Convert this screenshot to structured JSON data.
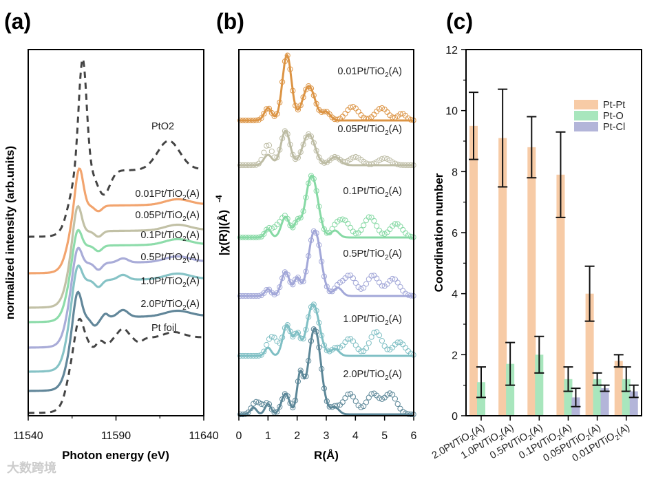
{
  "watermark": "大数跨境",
  "chart_data": [
    {
      "panel": "(a)",
      "type": "line",
      "xlabel": "Photon energy (eV)",
      "ylabel": "normalized intensity (arb.units)",
      "xlim": [
        11540,
        11640
      ],
      "xticks": [
        11540,
        11590,
        11640
      ],
      "ylim": [
        0,
        5.32
      ],
      "series": [
        {
          "name": "PtO2",
          "label": "PtO2",
          "color": "#444444",
          "dashed": true,
          "baseline": 2.6,
          "step": 0.95,
          "whiteline": 1.65,
          "wl_energy": 11571,
          "bumps": [
            [
              11583,
              -0.35,
              5
            ],
            [
              11620,
              0.42,
              9
            ]
          ]
        },
        {
          "name": "0.01Pt/TiO2(A)",
          "label": "0.01Pt/TiO2(A)",
          "color": "#f2a46e",
          "dashed": false,
          "baseline": 2.07,
          "step": 0.97,
          "whiteline": 0.6,
          "wl_energy": 11569,
          "bumps": [
            [
              11580,
              -0.08,
              3
            ],
            [
              11625,
              0.08,
              10
            ]
          ]
        },
        {
          "name": "0.05Pt/TiO2(A)",
          "label": "0.05Pt/TiO2(A)",
          "color": "#c2c1a6",
          "dashed": false,
          "baseline": 1.57,
          "step": 1.1,
          "whiteline": 0.46,
          "wl_energy": 11568,
          "bumps": [
            [
              11580,
              -0.08,
              3
            ],
            [
              11625,
              0.08,
              10
            ]
          ]
        },
        {
          "name": "0.1Pt/TiO2(A)",
          "label": "0.1Pt/TiO2(A)",
          "color": "#8ddcaa",
          "dashed": false,
          "baseline": 1.36,
          "step": 1.1,
          "whiteline": 0.32,
          "wl_energy": 11568,
          "bumps": [
            [
              11580,
              -0.08,
              3
            ],
            [
              11625,
              0.08,
              10
            ]
          ]
        },
        {
          "name": "0.5Pt/TiO2(A)",
          "label": "0.5Pt/TiO2(A)",
          "color": "#a9acd8",
          "dashed": false,
          "baseline": 0.99,
          "step": 1.22,
          "whiteline": 0.32,
          "wl_energy": 11568,
          "bumps": [
            [
              11580,
              -0.1,
              3
            ],
            [
              11594,
              0.06,
              4
            ],
            [
              11625,
              0.08,
              10
            ]
          ]
        },
        {
          "name": "1.0Pt/TiO2(A)",
          "label": "1.0Pt/TiO2(A)",
          "color": "#86c3c6",
          "dashed": false,
          "baseline": 0.64,
          "step": 1.32,
          "whiteline": 0.32,
          "wl_energy": 11568,
          "bumps": [
            [
              11580,
              -0.1,
              3
            ],
            [
              11594,
              0.07,
              4
            ],
            [
              11625,
              0.08,
              10
            ]
          ]
        },
        {
          "name": "2.0Pt/TiO2(A)",
          "label": "2.0Pt/TiO2(A)",
          "color": "#62879a",
          "dashed": false,
          "baseline": 0.36,
          "step": 1.06,
          "whiteline": 0.46,
          "wl_energy": 11568,
          "bumps": [
            [
              11578,
              -0.12,
              3
            ],
            [
              11584,
              0.05,
              2
            ],
            [
              11594,
              0.1,
              4
            ],
            [
              11625,
              0.08,
              10
            ]
          ]
        },
        {
          "name": "Pt foil",
          "label": "Pt foil",
          "color": "#444444",
          "dashed": true,
          "baseline": 0.04,
          "step": 1.07,
          "whiteline": 0.35,
          "wl_energy": 11569,
          "bumps": [
            [
              11577,
              -0.12,
              3
            ],
            [
              11585,
              -0.08,
              3
            ],
            [
              11594,
              0.14,
              4
            ],
            [
              11603,
              -0.06,
              3
            ],
            [
              11623,
              0.08,
              8
            ]
          ]
        }
      ]
    },
    {
      "panel": "(b)",
      "type": "line",
      "xlabel": "R(Å)",
      "ylabel": "|χ(R)|(Å)",
      "ylabel_exp": "-4",
      "xlim": [
        0,
        6
      ],
      "xticks": [
        0,
        1,
        2,
        3,
        4,
        5,
        6
      ],
      "ylim": [
        0,
        5.32
      ],
      "series": [
        {
          "name": "0.01Pt/TiO2(A)",
          "label": "0.01Pt/TiO2(A)",
          "color": "#dc9444",
          "baseline": 4.29,
          "peaks": [
            [
              1.0,
              0.18,
              0.18
            ],
            [
              1.65,
              0.95,
              0.22
            ],
            [
              2.4,
              0.5,
              0.3
            ],
            [
              3.0,
              0.12,
              0.2
            ]
          ],
          "data_extra": [
            [
              3.9,
              0.2,
              0.3
            ],
            [
              4.9,
              0.18,
              0.3
            ],
            [
              5.6,
              0.1,
              0.2
            ]
          ]
        },
        {
          "name": "0.05Pt/TiO2(A)",
          "label": "0.05Pt/TiO2(A)",
          "color": "#bdbca4",
          "baseline": 3.64,
          "peaks": [
            [
              1.0,
              0.15,
              0.2
            ],
            [
              1.6,
              0.5,
              0.22
            ],
            [
              2.4,
              0.45,
              0.3
            ],
            [
              3.3,
              0.12,
              0.25
            ]
          ],
          "data_extra": [
            [
              1.0,
              0.15,
              0.2
            ],
            [
              4.0,
              0.12,
              0.3
            ],
            [
              5.0,
              0.1,
              0.3
            ]
          ]
        },
        {
          "name": "0.1Pt/TiO2(A)",
          "label": "0.1Pt/TiO2(A)",
          "color": "#86d9a4",
          "baseline": 2.59,
          "peaks": [
            [
              1.0,
              0.12,
              0.15
            ],
            [
              1.6,
              0.3,
              0.2
            ],
            [
              2.0,
              0.2,
              0.15
            ],
            [
              2.5,
              0.9,
              0.3
            ],
            [
              3.3,
              0.1,
              0.2
            ]
          ],
          "data_extra": [
            [
              1.3,
              0.15,
              0.2
            ],
            [
              3.6,
              0.25,
              0.3
            ],
            [
              4.5,
              0.3,
              0.3
            ],
            [
              5.4,
              0.2,
              0.3
            ]
          ]
        },
        {
          "name": "0.5Pt/TiO2(A)",
          "label": "0.5Pt/TiO2(A)",
          "color": "#a2a7d8",
          "baseline": 1.74,
          "peaks": [
            [
              1.0,
              0.1,
              0.15
            ],
            [
              1.6,
              0.35,
              0.2
            ],
            [
              2.0,
              0.25,
              0.15
            ],
            [
              2.6,
              0.95,
              0.3
            ],
            [
              3.4,
              0.12,
              0.2
            ]
          ],
          "data_extra": [
            [
              3.8,
              0.3,
              0.3
            ],
            [
              4.6,
              0.3,
              0.3
            ],
            [
              5.3,
              0.25,
              0.3
            ]
          ]
        },
        {
          "name": "1.0Pt/TiO2(A)",
          "label": "1.0Pt/TiO2(A)",
          "color": "#7fbfc4",
          "baseline": 0.87,
          "peaks": [
            [
              1.0,
              0.12,
              0.15
            ],
            [
              1.65,
              0.45,
              0.2
            ],
            [
              2.0,
              0.3,
              0.15
            ],
            [
              2.55,
              0.75,
              0.3
            ],
            [
              3.3,
              0.1,
              0.2
            ]
          ],
          "data_extra": [
            [
              1.2,
              0.25,
              0.2
            ],
            [
              3.8,
              0.25,
              0.3
            ],
            [
              4.7,
              0.35,
              0.3
            ],
            [
              5.5,
              0.2,
              0.3
            ]
          ]
        },
        {
          "name": "2.0Pt/TiO2(A)",
          "label": "2.0Pt/TiO2(A)",
          "color": "#5c8798",
          "baseline": 0.02,
          "peaks": [
            [
              0.5,
              0.1,
              0.15
            ],
            [
              1.0,
              0.15,
              0.15
            ],
            [
              1.6,
              0.3,
              0.2
            ],
            [
              2.1,
              0.55,
              0.15
            ],
            [
              2.6,
              1.25,
              0.3
            ],
            [
              3.3,
              0.1,
              0.2
            ]
          ],
          "data_extra": [
            [
              0.7,
              0.15,
              0.2
            ],
            [
              3.8,
              0.3,
              0.3
            ],
            [
              4.6,
              0.3,
              0.3
            ],
            [
              5.2,
              0.3,
              0.3
            ]
          ]
        }
      ]
    },
    {
      "panel": "(c)",
      "type": "bar",
      "ylabel": "Coordination number",
      "ylim": [
        0,
        12
      ],
      "yticks": [
        0,
        2,
        4,
        6,
        8,
        10,
        12
      ],
      "legend_position": "top-right",
      "categories": [
        "2.0Pt/TiO2(A)",
        "1.0Pt/TiO2(A)",
        "0.5Pt/TiO2(A)",
        "0.1Pt/TiO2(A)",
        "0.05Pt/TiO2(A)",
        "0.01Pt/TiO2(A)"
      ],
      "series": [
        {
          "name": "Pt-Pt",
          "color": "#f7cba6",
          "values": [
            9.5,
            9.1,
            8.8,
            7.9,
            4.0,
            1.8
          ],
          "err_low": [
            8.4,
            7.5,
            7.8,
            6.5,
            3.1,
            1.6
          ],
          "err_high": [
            10.6,
            10.7,
            9.8,
            9.3,
            4.9,
            2.0
          ]
        },
        {
          "name": "Pt-O",
          "color": "#a8e6bd",
          "values": [
            1.1,
            1.7,
            2.0,
            1.2,
            1.2,
            1.2
          ],
          "err_low": [
            0.6,
            1.0,
            1.4,
            0.8,
            1.0,
            0.8
          ],
          "err_high": [
            1.6,
            2.4,
            2.6,
            1.6,
            1.4,
            1.6
          ]
        },
        {
          "name": "Pt-Cl",
          "color": "#b3b5d9",
          "values": [
            null,
            null,
            null,
            0.6,
            0.9,
            0.8
          ],
          "err_low": [
            null,
            null,
            null,
            0.3,
            0.8,
            0.6
          ],
          "err_high": [
            null,
            null,
            null,
            0.9,
            1.0,
            1.0
          ]
        }
      ]
    }
  ]
}
